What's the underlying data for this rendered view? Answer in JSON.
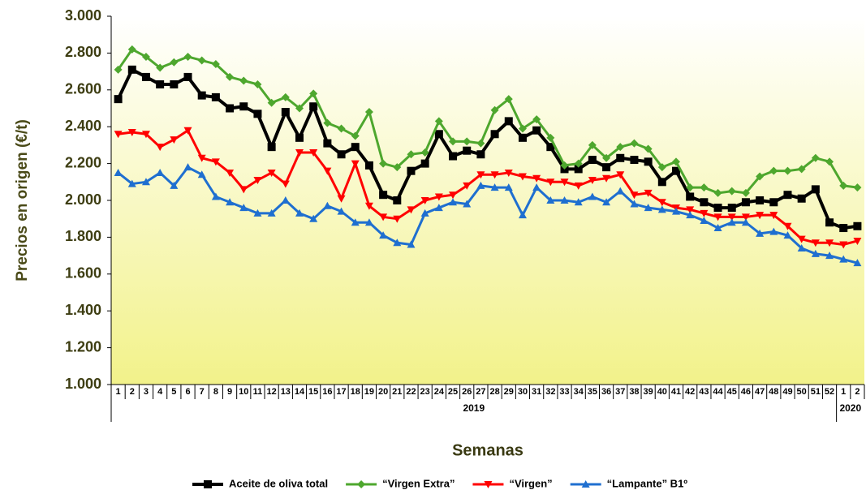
{
  "chart_data": {
    "type": "line",
    "y_label": "Precios en origen (€/t)",
    "x_label": "Semanas",
    "categories": [
      "1",
      "2",
      "3",
      "4",
      "5",
      "6",
      "7",
      "8",
      "9",
      "10",
      "11",
      "12",
      "13",
      "14",
      "15",
      "16",
      "17",
      "18",
      "19",
      "20",
      "21",
      "22",
      "23",
      "24",
      "25",
      "26",
      "27",
      "28",
      "29",
      "30",
      "31",
      "32",
      "33",
      "34",
      "35",
      "36",
      "37",
      "38",
      "39",
      "40",
      "41",
      "42",
      "43",
      "44",
      "45",
      "46",
      "47",
      "48",
      "49",
      "50",
      "51",
      "52",
      "1",
      "2"
    ],
    "years": [
      "2019",
      "2020"
    ],
    "ylim": [
      1000,
      3000
    ],
    "yticks": [
      {
        "value": 1000,
        "label": "1.000"
      },
      {
        "value": 1200,
        "label": "1.200"
      },
      {
        "value": 1400,
        "label": "1.400"
      },
      {
        "value": 1600,
        "label": "1.600"
      },
      {
        "value": 1800,
        "label": "1.800"
      },
      {
        "value": 2000,
        "label": "2.000"
      },
      {
        "value": 2200,
        "label": "2.200"
      },
      {
        "value": 2400,
        "label": "2.400"
      },
      {
        "value": 2600,
        "label": "2.600"
      },
      {
        "value": 2800,
        "label": "2.800"
      },
      {
        "value": 3000,
        "label": "3.000"
      }
    ],
    "legend": "bottom",
    "series": [
      {
        "name": "Aceite de oliva total",
        "color": "#000000",
        "marker": "square",
        "values": [
          2550,
          2710,
          2670,
          2630,
          2630,
          2670,
          2570,
          2560,
          2500,
          2510,
          2470,
          2290,
          2480,
          2340,
          2510,
          2310,
          2250,
          2290,
          2190,
          2030,
          2000,
          2160,
          2200,
          2360,
          2240,
          2270,
          2250,
          2360,
          2430,
          2340,
          2380,
          2290,
          2170,
          2170,
          2220,
          2180,
          2230,
          2220,
          2210,
          2100,
          2160,
          2020,
          1990,
          1960,
          1960,
          1990,
          2000,
          1990,
          2030,
          2010,
          2060,
          1880,
          1850,
          1860
        ]
      },
      {
        "name": "“Virgen Extra”",
        "color": "#4ea72e",
        "marker": "diamond",
        "values": [
          2710,
          2820,
          2780,
          2720,
          2750,
          2780,
          2760,
          2740,
          2670,
          2650,
          2630,
          2530,
          2560,
          2500,
          2580,
          2420,
          2390,
          2350,
          2480,
          2200,
          2180,
          2250,
          2260,
          2430,
          2320,
          2320,
          2310,
          2490,
          2550,
          2390,
          2440,
          2340,
          2190,
          2200,
          2300,
          2230,
          2290,
          2310,
          2280,
          2180,
          2210,
          2070,
          2070,
          2040,
          2050,
          2040,
          2130,
          2160,
          2160,
          2170,
          2230,
          2210,
          2080,
          2070
        ]
      },
      {
        "name": "“Virgen”",
        "color": "#ff0000",
        "marker": "triangle-down",
        "values": [
          2360,
          2370,
          2360,
          2290,
          2330,
          2380,
          2230,
          2210,
          2150,
          2060,
          2110,
          2150,
          2090,
          2260,
          2260,
          2160,
          2010,
          2200,
          1970,
          1910,
          1900,
          1950,
          2000,
          2020,
          2030,
          2080,
          2140,
          2140,
          2150,
          2130,
          2120,
          2100,
          2100,
          2080,
          2110,
          2120,
          2140,
          2030,
          2040,
          1990,
          1960,
          1950,
          1930,
          1910,
          1910,
          1910,
          1920,
          1920,
          1860,
          1790,
          1770,
          1770,
          1760,
          1780
        ]
      },
      {
        "name": "“Lampante” B1º",
        "color": "#1f6fd0",
        "marker": "triangle-up",
        "values": [
          2150,
          2090,
          2100,
          2150,
          2080,
          2180,
          2140,
          2020,
          1990,
          1960,
          1930,
          1930,
          2000,
          1930,
          1900,
          1970,
          1940,
          1880,
          1880,
          1810,
          1770,
          1760,
          1930,
          1960,
          1990,
          1980,
          2080,
          2070,
          2070,
          1920,
          2070,
          2000,
          2000,
          1990,
          2020,
          1990,
          2050,
          1980,
          1960,
          1950,
          1940,
          1920,
          1890,
          1850,
          1880,
          1880,
          1820,
          1830,
          1810,
          1740,
          1710,
          1700,
          1680,
          1660
        ]
      }
    ]
  }
}
